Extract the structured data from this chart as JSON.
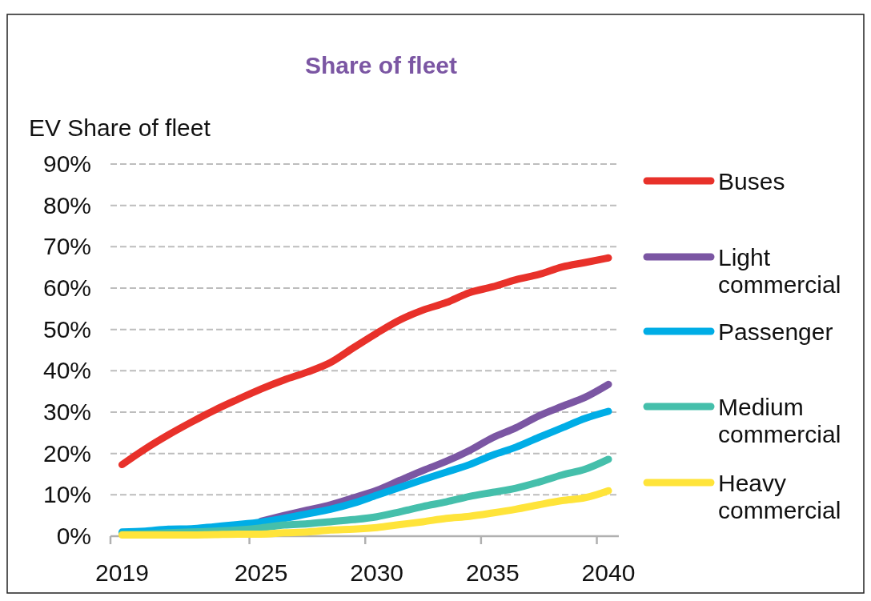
{
  "chart_data": {
    "type": "line",
    "title": "Share of fleet",
    "ylabel": "EV Share of fleet",
    "x": [
      2019,
      2020,
      2021,
      2022,
      2023,
      2024,
      2025,
      2026,
      2027,
      2028,
      2029,
      2030,
      2031,
      2032,
      2033,
      2034,
      2035,
      2036,
      2037,
      2038,
      2039,
      2040
    ],
    "xlim": [
      2018.5,
      2040.45
    ],
    "xticks": [
      {
        "value": 2018.5,
        "label": null
      },
      {
        "value": 2019,
        "label": "2019"
      },
      {
        "value": 2024.5,
        "label": null
      },
      {
        "value": 2025,
        "label": "2025"
      },
      {
        "value": 2029.5,
        "label": null
      },
      {
        "value": 2030,
        "label": "2030"
      },
      {
        "value": 2034.5,
        "label": null
      },
      {
        "value": 2035,
        "label": "2035"
      },
      {
        "value": 2039.5,
        "label": null
      },
      {
        "value": 2040,
        "label": "2040"
      }
    ],
    "ylim": [
      0,
      90
    ],
    "yticks": [
      {
        "value": 0,
        "label": "0%"
      },
      {
        "value": 10,
        "label": "10%"
      },
      {
        "value": 20,
        "label": "20%"
      },
      {
        "value": 30,
        "label": "30%"
      },
      {
        "value": 40,
        "label": "40%"
      },
      {
        "value": 50,
        "label": "50%"
      },
      {
        "value": 60,
        "label": "60%"
      },
      {
        "value": 70,
        "label": "70%"
      },
      {
        "value": 80,
        "label": "80%"
      },
      {
        "value": 90,
        "label": "90%"
      }
    ],
    "grid": "y",
    "legend": "right",
    "line_style": "solid",
    "marker": "none",
    "series": [
      {
        "name": "Buses",
        "color": "#e8312a",
        "values": [
          17.3,
          21.1,
          24.5,
          27.6,
          30.5,
          33.1,
          35.6,
          37.8,
          39.7,
          42.0,
          45.6,
          49.1,
          52.3,
          54.7,
          56.5,
          58.9,
          60.3,
          62.0,
          63.3,
          65.1,
          66.2,
          67.3
        ]
      },
      {
        "name": "Light commercial",
        "color": "#7b56a3",
        "values": [
          null,
          null,
          null,
          null,
          null,
          null,
          3.6,
          5.0,
          6.3,
          7.6,
          9.3,
          11.1,
          13.5,
          15.9,
          18.1,
          20.7,
          23.8,
          26.2,
          29.1,
          31.4,
          33.6,
          36.7
        ]
      },
      {
        "name": "Passenger",
        "color": "#00ade6",
        "values": [
          1.0,
          1.2,
          1.7,
          1.8,
          2.3,
          2.8,
          3.4,
          4.3,
          5.4,
          6.5,
          8.0,
          9.9,
          11.8,
          13.7,
          15.5,
          17.3,
          19.6,
          21.5,
          23.9,
          26.2,
          28.5,
          30.2
        ]
      },
      {
        "name": "Medium commercial",
        "color": "#45bfab",
        "values": [
          0.5,
          0.6,
          0.8,
          1.0,
          1.2,
          1.5,
          2.0,
          2.7,
          3.0,
          3.5,
          4.0,
          4.7,
          5.9,
          7.2,
          8.3,
          9.6,
          10.6,
          11.6,
          13.1,
          14.8,
          16.2,
          18.6
        ]
      },
      {
        "name": "Heavy commercial",
        "color": "#ffe43a",
        "values": [
          0.3,
          0.3,
          0.3,
          0.3,
          0.4,
          0.5,
          0.5,
          0.8,
          1.0,
          1.5,
          1.7,
          2.1,
          2.8,
          3.5,
          4.3,
          4.8,
          5.6,
          6.5,
          7.6,
          8.6,
          9.3,
          11.0
        ]
      }
    ]
  }
}
